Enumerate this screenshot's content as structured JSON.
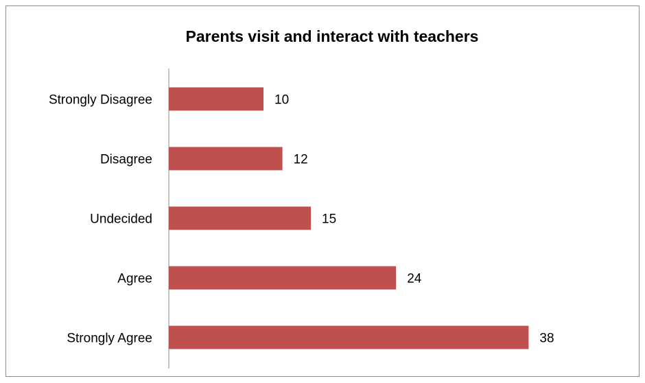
{
  "chart_data": {
    "type": "bar",
    "orientation": "horizontal",
    "title": "Parents visit and interact with teachers",
    "categories": [
      "Strongly Disagree",
      "Disagree",
      "Undecided",
      "Agree",
      "Strongly Agree"
    ],
    "values": [
      10,
      12,
      15,
      24,
      38
    ],
    "color": "#c0504d"
  }
}
